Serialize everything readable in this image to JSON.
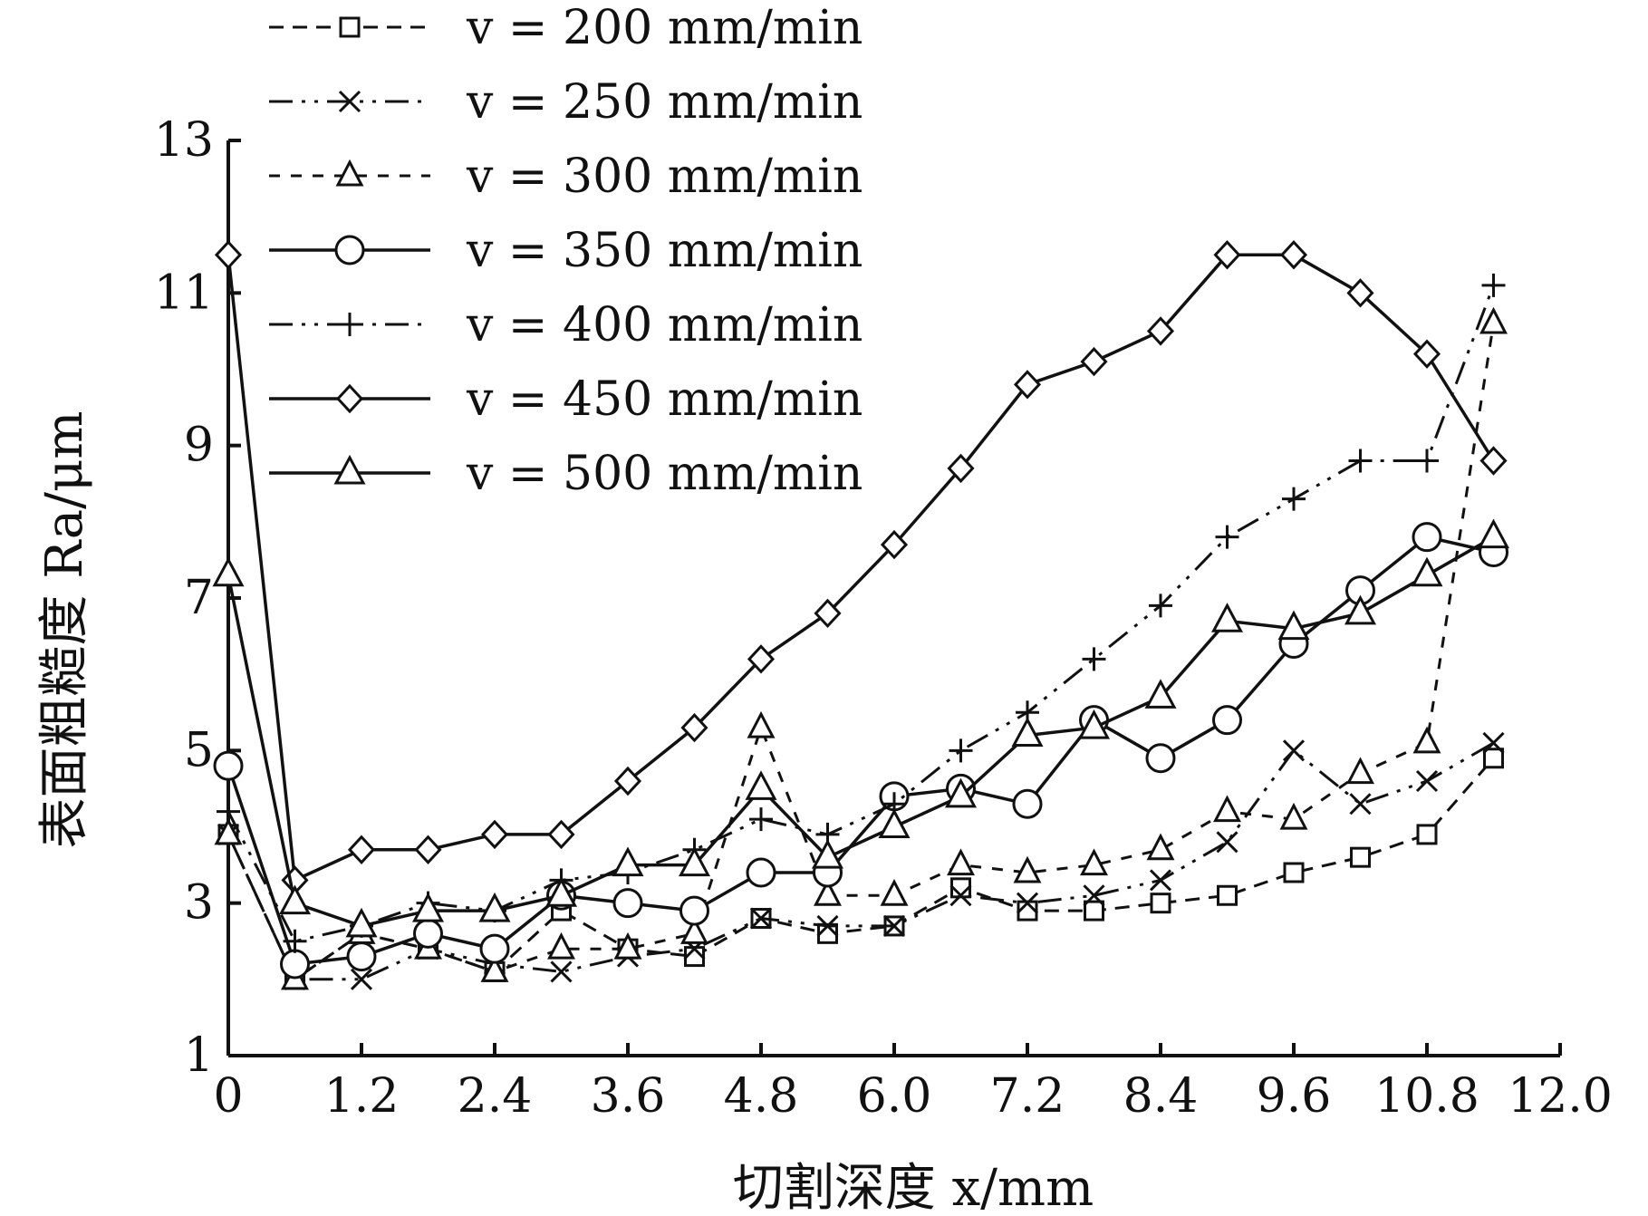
{
  "chart_data": {
    "type": "line",
    "xlabel": "切割深度 x/mm",
    "ylabel": "表面粗糙度 Ra/μm",
    "xlim": [
      0,
      12.0
    ],
    "ylim": [
      1,
      13
    ],
    "x_ticks": [
      "0",
      "1.2",
      "2.4",
      "3.6",
      "4.8",
      "6.0",
      "7.2",
      "8.4",
      "9.6",
      "10.8",
      "12.0"
    ],
    "y_ticks": [
      "1",
      "3",
      "5",
      "7",
      "9",
      "11",
      "13"
    ],
    "grid": false,
    "legend_position": "top-left",
    "x": [
      0,
      0.6,
      1.2,
      1.8,
      2.4,
      3.0,
      3.6,
      4.2,
      4.8,
      5.4,
      6.0,
      6.6,
      7.2,
      7.8,
      8.4,
      9.0,
      9.6,
      10.2,
      10.8,
      11.4
    ],
    "series": [
      {
        "name": "v = 200 mm/min",
        "marker": "square",
        "dash": "dashed",
        "values": [
          3.9,
          2.0,
          2.6,
          2.4,
          2.1,
          2.9,
          2.4,
          2.3,
          2.8,
          2.6,
          2.7,
          3.2,
          2.9,
          2.9,
          3.0,
          3.1,
          3.4,
          3.6,
          3.9,
          4.9
        ]
      },
      {
        "name": "v = 250 mm/min",
        "marker": "cross",
        "dash": "dashdotdot",
        "values": [
          3.9,
          2.0,
          2.0,
          2.4,
          2.2,
          2.1,
          2.3,
          2.4,
          2.8,
          2.7,
          2.7,
          3.1,
          3.0,
          3.1,
          3.3,
          3.8,
          5.0,
          4.3,
          4.6,
          5.1
        ]
      },
      {
        "name": "v = 300 mm/min",
        "marker": "triangle-open",
        "dash": "short-dash",
        "values": [
          3.9,
          2.0,
          2.6,
          2.4,
          2.1,
          2.4,
          2.4,
          2.6,
          5.3,
          3.1,
          3.1,
          3.5,
          3.4,
          3.5,
          3.7,
          4.2,
          4.1,
          4.7,
          5.1,
          10.6
        ]
      },
      {
        "name": "v = 350 mm/min",
        "marker": "circle",
        "dash": "solid",
        "values": [
          4.8,
          2.2,
          2.3,
          2.6,
          2.4,
          3.1,
          3.0,
          2.9,
          3.4,
          3.4,
          4.4,
          4.5,
          4.3,
          5.4,
          4.9,
          5.4,
          6.4,
          7.1,
          7.8,
          7.6
        ]
      },
      {
        "name": "v = 400 mm/min",
        "marker": "plus",
        "dash": "dashdotdot",
        "values": [
          4.2,
          2.5,
          2.7,
          3.0,
          2.9,
          3.3,
          3.4,
          3.7,
          4.1,
          3.9,
          4.3,
          5.0,
          5.5,
          6.2,
          6.9,
          7.8,
          8.3,
          8.8,
          8.8,
          11.1
        ]
      },
      {
        "name": "v = 450 mm/min",
        "marker": "diamond",
        "dash": "solid",
        "values": [
          11.5,
          3.3,
          3.7,
          3.7,
          3.9,
          3.9,
          4.6,
          5.3,
          6.2,
          6.8,
          7.7,
          8.7,
          9.8,
          10.1,
          10.5,
          11.5,
          11.5,
          11.0,
          10.2,
          8.8
        ]
      },
      {
        "name": "v = 500 mm/min",
        "marker": "triangle-bold",
        "dash": "solid",
        "values": [
          7.3,
          3.0,
          2.7,
          2.9,
          2.9,
          3.1,
          3.5,
          3.5,
          4.5,
          3.6,
          4.0,
          4.4,
          5.2,
          5.3,
          5.7,
          6.7,
          6.6,
          6.8,
          7.3,
          7.8
        ]
      }
    ]
  }
}
